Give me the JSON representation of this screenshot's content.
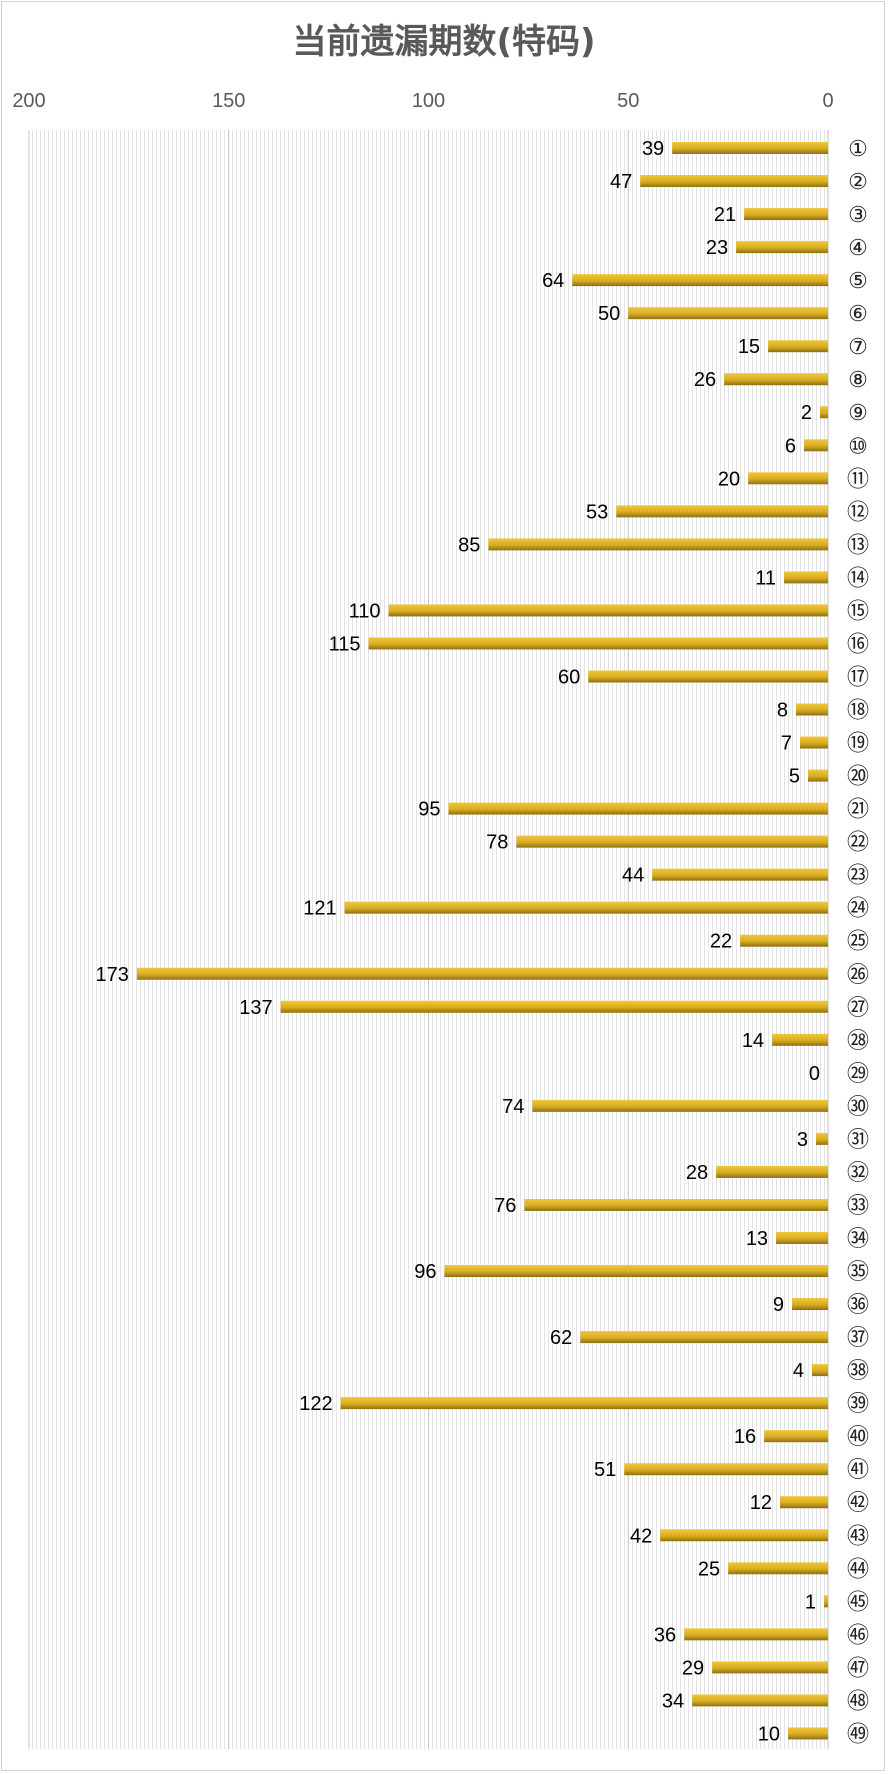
{
  "chart_data": {
    "type": "bar",
    "orientation": "horizontal",
    "x_axis_reversed": true,
    "title": "当前遗漏期数(特码)",
    "xlabel": "",
    "ylabel": "",
    "xlim": [
      0,
      200
    ],
    "x_ticks": [
      "200",
      "150",
      "100",
      "50",
      "0"
    ],
    "x_tick_values": [
      200,
      150,
      100,
      50,
      0
    ],
    "grid": true,
    "legend": "none",
    "bar_color": "#d4a820",
    "categories": [
      "①",
      "②",
      "③",
      "④",
      "⑤",
      "⑥",
      "⑦",
      "⑧",
      "⑨",
      "⑩",
      "⑪",
      "⑫",
      "⑬",
      "⑭",
      "⑮",
      "⑯",
      "⑰",
      "⑱",
      "⑲",
      "⑳",
      "㉑",
      "㉒",
      "㉓",
      "㉔",
      "㉕",
      "㉖",
      "㉗",
      "㉘",
      "㉙",
      "㉚",
      "㉛",
      "㉜",
      "㉝",
      "㉞",
      "㉟",
      "㊱",
      "㊲",
      "㊳",
      "㊴",
      "㊵",
      "㊶",
      "㊷",
      "㊸",
      "㊹",
      "㊺",
      "㊻",
      "㊼",
      "㊽",
      "㊾"
    ],
    "values": [
      39,
      47,
      21,
      23,
      64,
      50,
      15,
      26,
      2,
      6,
      20,
      53,
      85,
      11,
      110,
      115,
      60,
      8,
      7,
      5,
      95,
      78,
      44,
      121,
      22,
      173,
      137,
      14,
      0,
      74,
      3,
      28,
      76,
      13,
      96,
      9,
      62,
      4,
      122,
      16,
      51,
      12,
      42,
      25,
      1,
      36,
      29,
      34,
      10
    ]
  }
}
